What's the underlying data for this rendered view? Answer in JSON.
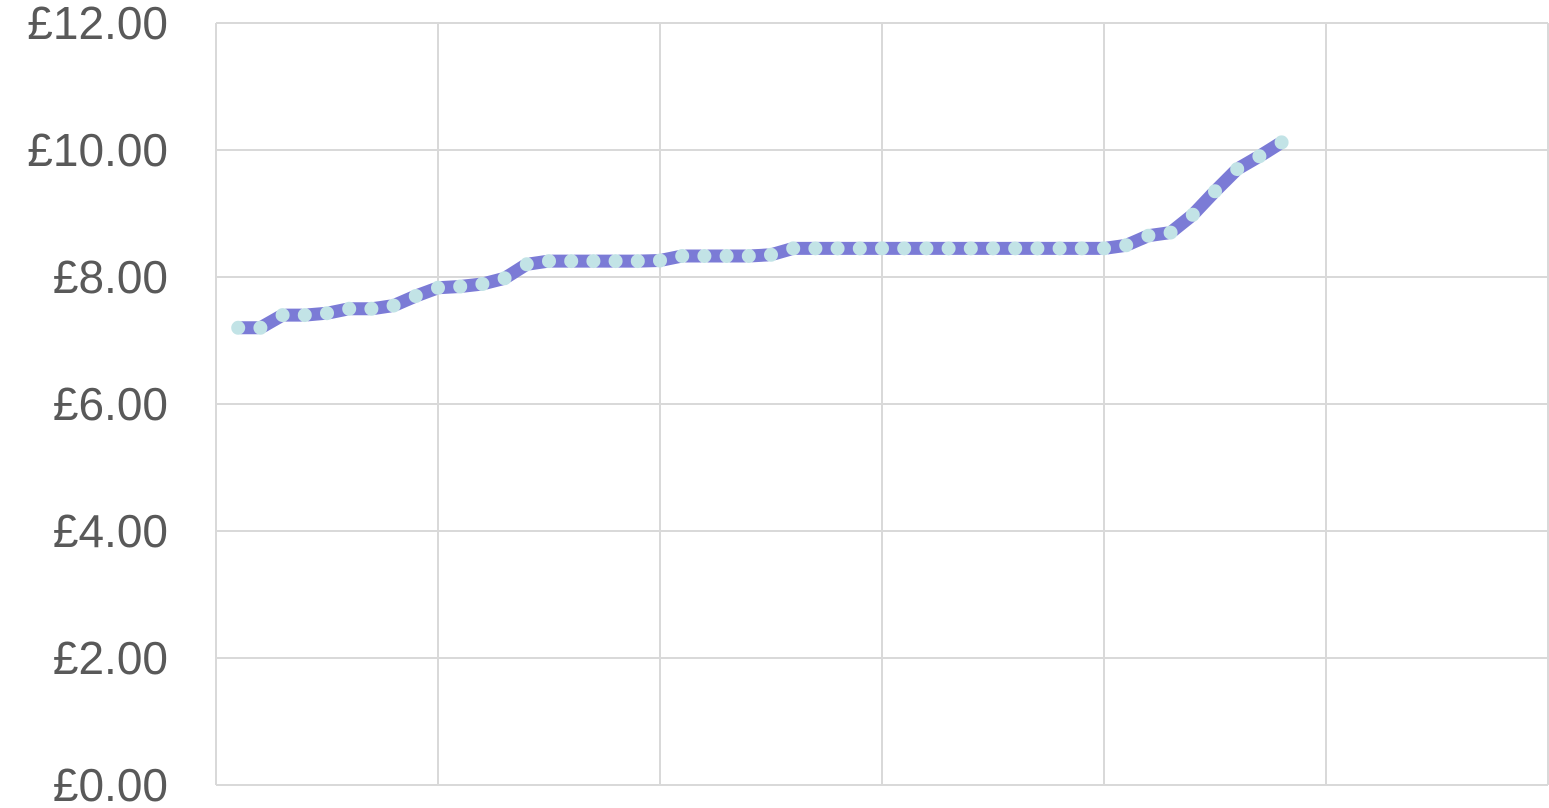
{
  "chart_data": {
    "type": "line",
    "title": "",
    "xlabel": "",
    "ylabel": "",
    "ylim": [
      0,
      12
    ],
    "y_ticks": [
      "£0.00",
      "£2.00",
      "£4.00",
      "£6.00",
      "£8.00",
      "£10.00",
      "£12.00"
    ],
    "y_tick_values": [
      0,
      2,
      4,
      6,
      8,
      10,
      12
    ],
    "x_range": [
      0,
      60
    ],
    "x_gridlines": [
      10,
      20,
      30,
      40,
      50,
      60
    ],
    "grid": true,
    "legend": "none",
    "series": [
      {
        "line_color": "#7b7bd6",
        "marker_color": "#c2e3e6",
        "x": [
          1,
          2,
          3,
          4,
          5,
          6,
          7,
          8,
          9,
          10,
          11,
          12,
          13,
          14,
          15,
          16,
          17,
          18,
          19,
          20,
          21,
          22,
          23,
          24,
          25,
          26,
          27,
          28,
          29,
          30,
          31,
          32,
          33,
          34,
          35,
          36,
          37,
          38,
          39,
          40,
          41,
          42,
          43,
          44,
          45,
          46,
          47,
          48
        ],
        "values": [
          7.2,
          7.2,
          7.4,
          7.4,
          7.43,
          7.5,
          7.5,
          7.55,
          7.7,
          7.83,
          7.85,
          7.89,
          7.98,
          8.2,
          8.25,
          8.25,
          8.25,
          8.25,
          8.25,
          8.26,
          8.33,
          8.33,
          8.33,
          8.33,
          8.35,
          8.45,
          8.45,
          8.45,
          8.45,
          8.45,
          8.45,
          8.45,
          8.45,
          8.45,
          8.45,
          8.45,
          8.45,
          8.45,
          8.45,
          8.45,
          8.5,
          8.65,
          8.7,
          8.98,
          9.35,
          9.7,
          9.9,
          10.12
        ]
      }
    ]
  }
}
